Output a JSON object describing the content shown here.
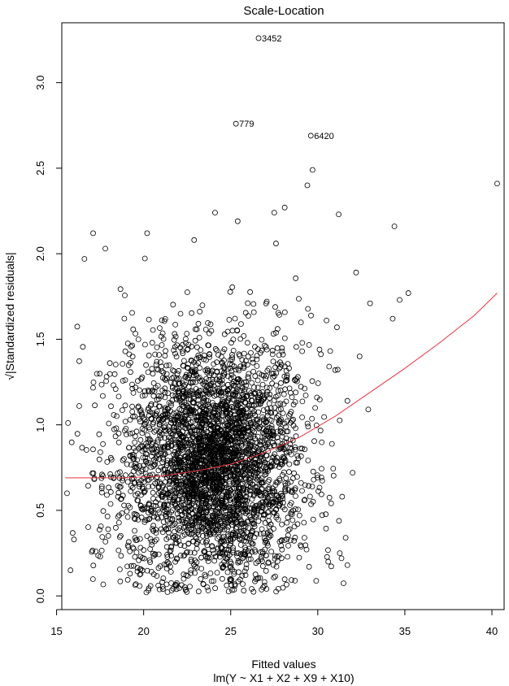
{
  "chart_data": {
    "type": "scatter",
    "title": "Scale-Location",
    "xlabel": "Fitted values",
    "xlabel2": "lm(Y ~ X1 + X2 + X9 + X10)",
    "ylabel": "√|Standardized residuals|",
    "xlim": [
      15.3,
      40.7
    ],
    "ylim": [
      -0.08,
      3.35
    ],
    "xticks": [
      "15",
      "20",
      "25",
      "30",
      "35",
      "40"
    ],
    "yticks": [
      "0.0",
      "0.5",
      "1.0",
      "1.5",
      "2.0",
      "2.5",
      "3.0"
    ],
    "marker": "open-circle",
    "point_color": "#000000",
    "smooth_color": "#e8333f",
    "labeled_points": [
      {
        "label": "3452",
        "x": 26.6,
        "y": 3.26
      },
      {
        "label": "779",
        "x": 25.3,
        "y": 2.76
      },
      {
        "label": "6420",
        "x": 29.6,
        "y": 2.69
      }
    ],
    "outliers": [
      {
        "x": 40.3,
        "y": 2.41
      },
      {
        "x": 29.7,
        "y": 2.49
      },
      {
        "x": 29.4,
        "y": 2.4
      },
      {
        "x": 34.4,
        "y": 2.16
      },
      {
        "x": 31.2,
        "y": 2.23
      },
      {
        "x": 27.5,
        "y": 2.24
      },
      {
        "x": 25.4,
        "y": 2.19
      },
      {
        "x": 27.6,
        "y": 2.06
      },
      {
        "x": 24.1,
        "y": 2.24
      },
      {
        "x": 28.1,
        "y": 2.27
      },
      {
        "x": 20.2,
        "y": 2.12
      },
      {
        "x": 17.1,
        "y": 2.12
      },
      {
        "x": 32.2,
        "y": 1.89
      },
      {
        "x": 35.2,
        "y": 1.77
      },
      {
        "x": 34.7,
        "y": 1.73
      },
      {
        "x": 34.3,
        "y": 1.62
      },
      {
        "x": 33.0,
        "y": 1.71
      },
      {
        "x": 32.4,
        "y": 1.4
      },
      {
        "x": 32.9,
        "y": 1.09
      },
      {
        "x": 31.1,
        "y": 1.57
      },
      {
        "x": 30.5,
        "y": 1.61
      },
      {
        "x": 16.6,
        "y": 1.97
      },
      {
        "x": 17.8,
        "y": 2.03
      },
      {
        "x": 22.9,
        "y": 2.08
      },
      {
        "x": 32.0,
        "y": 0.72
      },
      {
        "x": 30.6,
        "y": 0.2
      },
      {
        "x": 31.6,
        "y": 0.34
      },
      {
        "x": 30.1,
        "y": 1.44
      },
      {
        "x": 31.0,
        "y": 1.32
      },
      {
        "x": 31.7,
        "y": 1.14
      },
      {
        "x": 31.4,
        "y": 0.58
      },
      {
        "x": 31.7,
        "y": 0.18
      },
      {
        "x": 16.0,
        "y": 0.33
      },
      {
        "x": 15.8,
        "y": 0.15
      },
      {
        "x": 15.6,
        "y": 0.6
      },
      {
        "x": 16.3,
        "y": 1.11
      }
    ],
    "cloud": {
      "n_points": 3600,
      "x_center": 24.0,
      "x_spread": 2.6,
      "x_range": [
        15.6,
        31.5
      ],
      "y_center": 0.78,
      "y_spread": 0.35,
      "y_range": [
        0.02,
        2.0
      ]
    },
    "smooth_line": {
      "x": [
        15.5,
        17.0,
        19.0,
        21.0,
        23.0,
        25.0,
        27.0,
        29.0,
        31.0,
        33.0,
        35.0,
        37.0,
        39.0,
        40.3
      ],
      "y": [
        0.69,
        0.69,
        0.69,
        0.7,
        0.73,
        0.77,
        0.84,
        0.93,
        1.05,
        1.19,
        1.33,
        1.48,
        1.64,
        1.77
      ]
    }
  }
}
